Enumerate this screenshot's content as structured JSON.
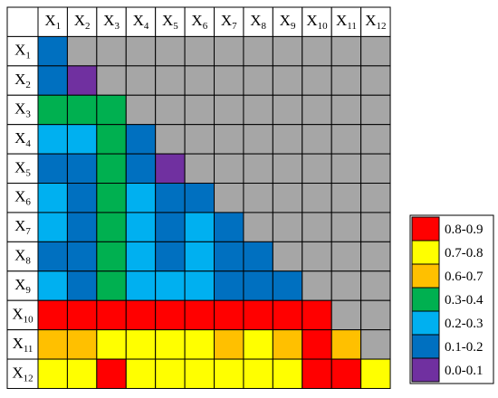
{
  "chart_data": {
    "type": "heatmap",
    "title": "",
    "row_labels": [
      {
        "base": "X",
        "sub": "1"
      },
      {
        "base": "X",
        "sub": "2"
      },
      {
        "base": "X",
        "sub": "3"
      },
      {
        "base": "X",
        "sub": "4"
      },
      {
        "base": "X",
        "sub": "5"
      },
      {
        "base": "X",
        "sub": "6"
      },
      {
        "base": "X",
        "sub": "7"
      },
      {
        "base": "X",
        "sub": "8"
      },
      {
        "base": "X",
        "sub": "9"
      },
      {
        "base": "X",
        "sub": "10"
      },
      {
        "base": "X",
        "sub": "11"
      },
      {
        "base": "X",
        "sub": "12"
      }
    ],
    "col_labels": [
      {
        "base": "X",
        "sub": "1"
      },
      {
        "base": "X",
        "sub": "2"
      },
      {
        "base": "X",
        "sub": "3"
      },
      {
        "base": "X",
        "sub": "4"
      },
      {
        "base": "X",
        "sub": "5"
      },
      {
        "base": "X",
        "sub": "6"
      },
      {
        "base": "X",
        "sub": "7"
      },
      {
        "base": "X",
        "sub": "8"
      },
      {
        "base": "X",
        "sub": "9"
      },
      {
        "base": "X",
        "sub": "10"
      },
      {
        "base": "X",
        "sub": "11"
      },
      {
        "base": "X",
        "sub": "12"
      }
    ],
    "matrix": [
      [
        "0.1-0.2",
        null,
        null,
        null,
        null,
        null,
        null,
        null,
        null,
        null,
        null,
        null
      ],
      [
        "0.1-0.2",
        "0.0-0.1",
        null,
        null,
        null,
        null,
        null,
        null,
        null,
        null,
        null,
        null
      ],
      [
        "0.3-0.4",
        "0.3-0.4",
        "0.3-0.4",
        null,
        null,
        null,
        null,
        null,
        null,
        null,
        null,
        null
      ],
      [
        "0.2-0.3",
        "0.2-0.3",
        "0.3-0.4",
        "0.1-0.2",
        null,
        null,
        null,
        null,
        null,
        null,
        null,
        null
      ],
      [
        "0.1-0.2",
        "0.1-0.2",
        "0.3-0.4",
        "0.1-0.2",
        "0.0-0.1",
        null,
        null,
        null,
        null,
        null,
        null,
        null
      ],
      [
        "0.2-0.3",
        "0.1-0.2",
        "0.3-0.4",
        "0.2-0.3",
        "0.1-0.2",
        "0.1-0.2",
        null,
        null,
        null,
        null,
        null,
        null
      ],
      [
        "0.2-0.3",
        "0.1-0.2",
        "0.3-0.4",
        "0.2-0.3",
        "0.1-0.2",
        "0.2-0.3",
        "0.1-0.2",
        null,
        null,
        null,
        null,
        null
      ],
      [
        "0.1-0.2",
        "0.1-0.2",
        "0.3-0.4",
        "0.2-0.3",
        "0.1-0.2",
        "0.2-0.3",
        "0.1-0.2",
        "0.1-0.2",
        null,
        null,
        null,
        null
      ],
      [
        "0.2-0.3",
        "0.1-0.2",
        "0.3-0.4",
        "0.2-0.3",
        "0.2-0.3",
        "0.2-0.3",
        "0.1-0.2",
        "0.1-0.2",
        "0.1-0.2",
        null,
        null,
        null
      ],
      [
        "0.8-0.9",
        "0.8-0.9",
        "0.8-0.9",
        "0.8-0.9",
        "0.8-0.9",
        "0.8-0.9",
        "0.8-0.9",
        "0.8-0.9",
        "0.8-0.9",
        "0.8-0.9",
        null,
        null
      ],
      [
        "0.6-0.7",
        "0.6-0.7",
        "0.7-0.8",
        "0.7-0.8",
        "0.7-0.8",
        "0.7-0.8",
        "0.6-0.7",
        "0.7-0.8",
        "0.6-0.7",
        "0.8-0.9",
        "0.6-0.7",
        null
      ],
      [
        "0.7-0.8",
        "0.7-0.8",
        "0.8-0.9",
        "0.7-0.8",
        "0.7-0.8",
        "0.7-0.8",
        "0.7-0.8",
        "0.7-0.8",
        "0.7-0.8",
        "0.8-0.9",
        "0.8-0.9",
        "0.7-0.8"
      ]
    ],
    "empty_color": "#a6a6a6",
    "legend_placement": "right",
    "legend": [
      {
        "label": "0.8-0.9",
        "color": "#ff0000"
      },
      {
        "label": "0.7-0.8",
        "color": "#ffff00"
      },
      {
        "label": "0.6-0.7",
        "color": "#ffc000"
      },
      {
        "label": "0.3-0.4",
        "color": "#00b050"
      },
      {
        "label": "0.2-0.3",
        "color": "#00b0f0"
      },
      {
        "label": "0.1-0.2",
        "color": "#0070c0"
      },
      {
        "label": "0.0-0.1",
        "color": "#7030a0"
      }
    ]
  }
}
